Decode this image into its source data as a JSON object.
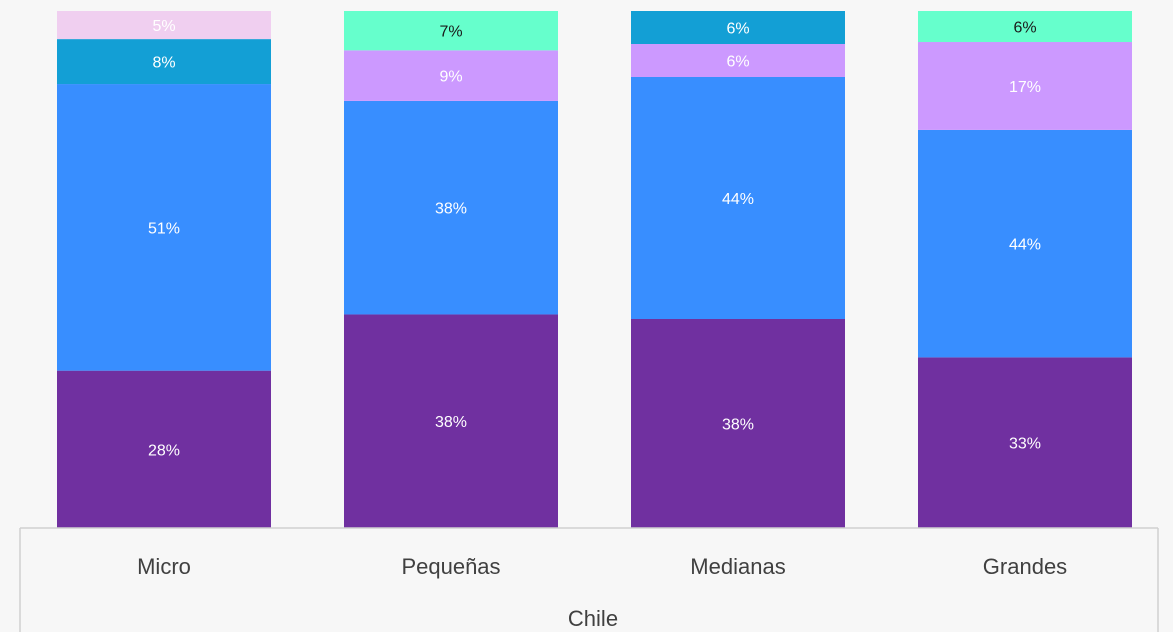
{
  "chart_data": {
    "type": "bar",
    "stacked": true,
    "normalized": true,
    "group_label": "Chile",
    "categories": [
      "Micro",
      "Pequeñas",
      "Medianas",
      "Grandes"
    ],
    "series": [
      {
        "color": "#7030a0",
        "values": [
          28,
          38,
          38,
          33
        ],
        "labels": [
          "28%",
          "38%",
          "38%",
          "33%"
        ]
      },
      {
        "color": "#388eff",
        "values": [
          51,
          38,
          44,
          44
        ],
        "labels": [
          "51%",
          "38%",
          "44%",
          "44%"
        ]
      },
      {
        "color": "#cc99ff",
        "values": [
          0,
          9,
          6,
          17
        ],
        "labels": [
          "",
          "9%",
          "6%",
          "17%"
        ]
      },
      {
        "color": "#139fd5",
        "values": [
          8,
          0,
          6,
          0
        ],
        "labels": [
          "8%",
          "",
          "6%",
          ""
        ]
      },
      {
        "color": "#f0cff0",
        "values": [
          5,
          0,
          0,
          0
        ],
        "labels": [
          "5%",
          "",
          "",
          ""
        ]
      },
      {
        "color": "#66ffcc",
        "values": [
          0,
          7,
          0,
          6
        ],
        "labels": [
          "",
          "7%",
          "",
          "6%"
        ]
      }
    ],
    "ylim": [
      0,
      100
    ],
    "grid": false,
    "legend": "none"
  }
}
